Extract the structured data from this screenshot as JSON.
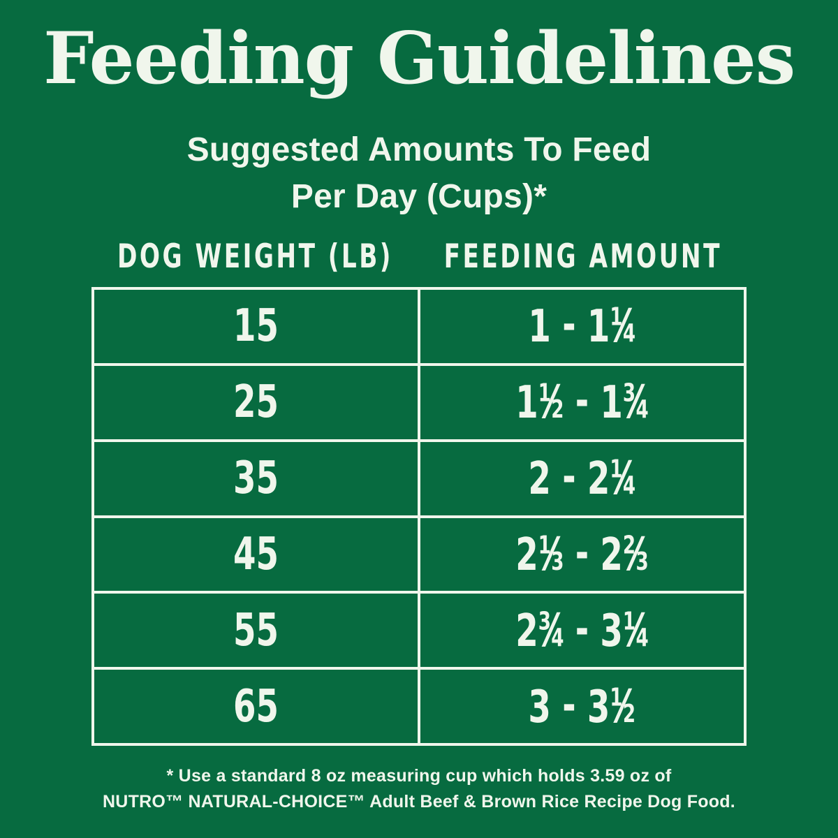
{
  "theme": {
    "background_color": "#076b40",
    "text_color": "#f0f6ec"
  },
  "title": "Feeding Guidelines",
  "subtitle_line1": "Suggested Amounts To Feed",
  "subtitle_line2": "Per Day (Cups)*",
  "table": {
    "col1_header": "DOG WEIGHT (LB)",
    "col2_header": "FEEDING AMOUNT",
    "rows": [
      {
        "weight": "15",
        "amount": "1 - 1¼"
      },
      {
        "weight": "25",
        "amount": "1½ - 1¾"
      },
      {
        "weight": "35",
        "amount": "2 - 2¼"
      },
      {
        "weight": "45",
        "amount": "2⅓ - 2⅔"
      },
      {
        "weight": "55",
        "amount": "2¾ - 3¼"
      },
      {
        "weight": "65",
        "amount": "3 - 3½"
      }
    ]
  },
  "footnote_line1": "* Use a standard 8 oz measuring cup which holds 3.59 oz of",
  "footnote_line2": "NUTRO™ NATURAL-CHOICE™ Adult Beef & Brown Rice Recipe Dog Food."
}
